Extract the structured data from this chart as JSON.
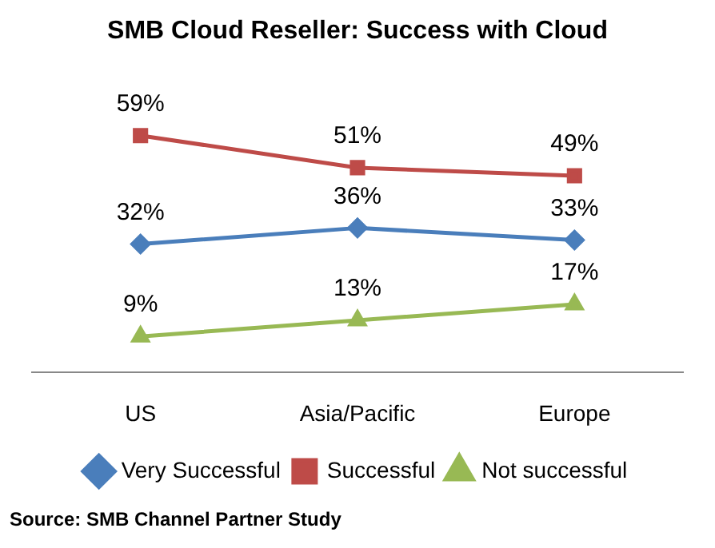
{
  "chart_data": {
    "type": "line",
    "title": "SMB Cloud Reseller: Success with Cloud",
    "categories": [
      "US",
      "Asia/Pacific",
      "Europe"
    ],
    "series": [
      {
        "name": "Very Successful",
        "color": "#4a7ebb",
        "values": [
          32,
          36,
          33
        ],
        "value_labels": [
          "32%",
          "36%",
          "33%"
        ],
        "marker": "diamond"
      },
      {
        "name": "Successful",
        "color": "#be4b48",
        "values": [
          59,
          51,
          49
        ],
        "value_labels": [
          "59%",
          "51%",
          "49%"
        ],
        "marker": "square"
      },
      {
        "name": "Not successful",
        "color": "#98b954",
        "values": [
          9,
          13,
          17
        ],
        "value_labels": [
          "9%",
          "13%",
          "17%"
        ],
        "marker": "triangle"
      }
    ],
    "legend": "bottom",
    "grid": false,
    "annotations": [
      "Source: SMB Channel Partner Study"
    ]
  }
}
